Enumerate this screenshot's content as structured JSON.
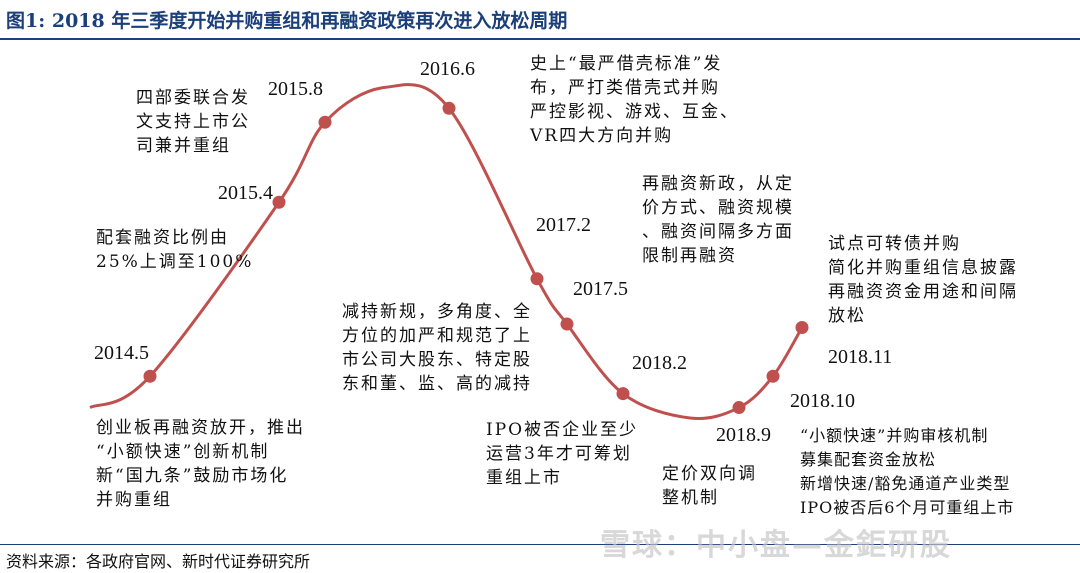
{
  "header": {
    "title": "图1:   2018 年三季度开始并购重组和再融资政策再次进入放松周期"
  },
  "footer": {
    "source": "资料来源：各政府官网、新时代证券研究所"
  },
  "watermark": {
    "text": "雪球：中小盘—金鉅研股"
  },
  "chart_data": {
    "type": "line",
    "title": "2018 年三季度开始并购重组和再融资政策再次进入放松周期",
    "color": "#c0504d",
    "points": [
      {
        "x": "2014.5",
        "y": 0.12
      },
      {
        "x": "2015.4",
        "y": 0.62
      },
      {
        "x": "2015.8",
        "y": 0.85
      },
      {
        "x": "2016.6",
        "y": 0.89
      },
      {
        "x": "2017.2",
        "y": 0.4
      },
      {
        "x": "2017.5",
        "y": 0.27
      },
      {
        "x": "2018.2",
        "y": 0.07
      },
      {
        "x": "2018.9",
        "y": 0.03
      },
      {
        "x": "2018.10",
        "y": 0.12
      },
      {
        "x": "2018.11",
        "y": 0.26
      }
    ]
  },
  "annotations": [
    {
      "name": "annotation-2014-5",
      "lines": [
        "创业板再融资放开，推出",
        "“小额快速”创新机制",
        "新“国九条”鼓励市场化",
        "并购重组"
      ]
    },
    {
      "name": "annotation-2015-4",
      "lines": [
        "配套融资比例由",
        "25%上调至100%"
      ]
    },
    {
      "name": "annotation-2015-8",
      "lines": [
        "四部委联合发",
        "文支持上市公",
        "司兼并重组"
      ]
    },
    {
      "name": "annotation-2016-6",
      "lines": [
        "史上“最严借壳标准”发",
        "布，严打类借壳式并购",
        "严控影视、游戏、互金、",
        "VR四大方向并购"
      ]
    },
    {
      "name": "annotation-2017-2",
      "lines": [
        "再融资新政，从定",
        "价方式、融资规模",
        "、融资间隔多方面",
        "限制再融资"
      ]
    },
    {
      "name": "annotation-2017-5",
      "lines": [
        "减持新规，多角度、全",
        "方位的加严和规范了上",
        "市公司大股东、特定股",
        "东和董、监、高的减持"
      ]
    },
    {
      "name": "annotation-2018-2",
      "lines": [
        "IPO被否企业至少",
        "运营3年才可筹划",
        "重组上市"
      ]
    },
    {
      "name": "annotation-2018-9",
      "lines": [
        "定价双向调",
        "整机制"
      ]
    },
    {
      "name": "annotation-2018-10",
      "lines": [
        "“小额快速”并购审核机制",
        "募集配套资金放松",
        "新增快速/豁免通道产业类型",
        "IPO被否后6个月可重组上市"
      ]
    },
    {
      "name": "annotation-2018-11",
      "lines": [
        "试点可转债并购",
        "简化并购重组信息披露",
        "再融资资金用途和间隔",
        "放松"
      ]
    }
  ]
}
